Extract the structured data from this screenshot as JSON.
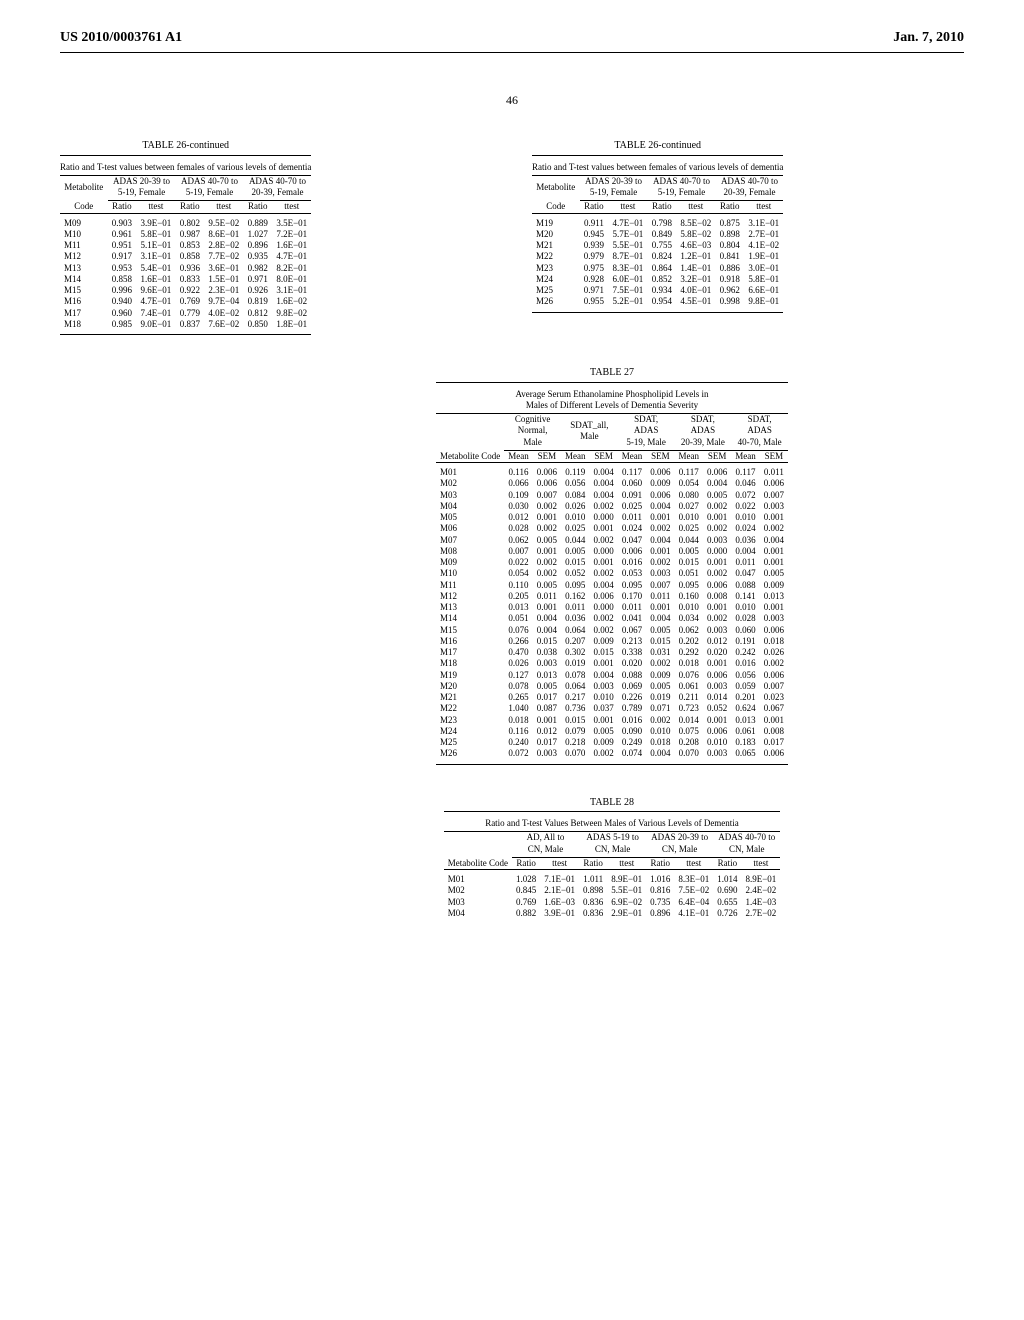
{
  "header": {
    "left": "US 2010/0003761 A1",
    "right": "Jan. 7, 2010"
  },
  "page_number": "46",
  "table26": {
    "caption": "TABLE 26-continued",
    "subtitle": "Ratio and T-test values between females of various levels of dementia",
    "metab_label": "Metabolite",
    "code_label": "Code",
    "group_labels": [
      "ADAS 20-39 to\n5-19, Female",
      "ADAS 40-70 to\n5-19, Female",
      "ADAS 40-70 to\n20-39, Female"
    ],
    "col_labels": [
      "Ratio",
      "ttest"
    ],
    "left_rows": [
      [
        "M09",
        "0.903",
        "3.9E−01",
        "0.802",
        "9.5E−02",
        "0.889",
        "3.5E−01"
      ],
      [
        "M10",
        "0.961",
        "5.8E−01",
        "0.987",
        "8.6E−01",
        "1.027",
        "7.2E−01"
      ],
      [
        "M11",
        "0.951",
        "5.1E−01",
        "0.853",
        "2.8E−02",
        "0.896",
        "1.6E−01"
      ],
      [
        "M12",
        "0.917",
        "3.1E−01",
        "0.858",
        "7.7E−02",
        "0.935",
        "4.7E−01"
      ],
      [
        "M13",
        "0.953",
        "5.4E−01",
        "0.936",
        "3.6E−01",
        "0.982",
        "8.2E−01"
      ],
      [
        "M14",
        "0.858",
        "1.6E−01",
        "0.833",
        "1.5E−01",
        "0.971",
        "8.0E−01"
      ],
      [
        "M15",
        "0.996",
        "9.6E−01",
        "0.922",
        "2.3E−01",
        "0.926",
        "3.1E−01"
      ],
      [
        "M16",
        "0.940",
        "4.7E−01",
        "0.769",
        "9.7E−04",
        "0.819",
        "1.6E−02"
      ],
      [
        "M17",
        "0.960",
        "7.4E−01",
        "0.779",
        "4.0E−02",
        "0.812",
        "9.8E−02"
      ],
      [
        "M18",
        "0.985",
        "9.0E−01",
        "0.837",
        "7.6E−02",
        "0.850",
        "1.8E−01"
      ]
    ],
    "right_rows": [
      [
        "M19",
        "0.911",
        "4.7E−01",
        "0.798",
        "8.5E−02",
        "0.875",
        "3.1E−01"
      ],
      [
        "M20",
        "0.945",
        "5.7E−01",
        "0.849",
        "5.8E−02",
        "0.898",
        "2.7E−01"
      ],
      [
        "M21",
        "0.939",
        "5.5E−01",
        "0.755",
        "4.6E−03",
        "0.804",
        "4.1E−02"
      ],
      [
        "M22",
        "0.979",
        "8.7E−01",
        "0.824",
        "1.2E−01",
        "0.841",
        "1.9E−01"
      ],
      [
        "M23",
        "0.975",
        "8.3E−01",
        "0.864",
        "1.4E−01",
        "0.886",
        "3.0E−01"
      ],
      [
        "M24",
        "0.928",
        "6.0E−01",
        "0.852",
        "3.2E−01",
        "0.918",
        "5.8E−01"
      ],
      [
        "M25",
        "0.971",
        "7.5E−01",
        "0.934",
        "4.0E−01",
        "0.962",
        "6.6E−01"
      ],
      [
        "M26",
        "0.955",
        "5.2E−01",
        "0.954",
        "4.5E−01",
        "0.998",
        "9.8E−01"
      ]
    ]
  },
  "table27": {
    "caption": "TABLE 27",
    "subtitle": "Average Serum Ethanolamine Phospholipid Levels in\nMales of Different Levels of Dementia Severity",
    "metab_label": "Metabolite Code",
    "group_labels": [
      "Cognitive\nNormal,\nMale",
      "SDAT_all,\nMale",
      "SDAT,\nADAS\n5-19, Male",
      "SDAT,\nADAS\n20-39, Male",
      "SDAT,\nADAS\n40-70, Male"
    ],
    "col_labels": [
      "Mean",
      "SEM"
    ],
    "rows": [
      [
        "M01",
        "0.116",
        "0.006",
        "0.119",
        "0.004",
        "0.117",
        "0.006",
        "0.117",
        "0.006",
        "0.117",
        "0.011"
      ],
      [
        "M02",
        "0.066",
        "0.006",
        "0.056",
        "0.004",
        "0.060",
        "0.009",
        "0.054",
        "0.004",
        "0.046",
        "0.006"
      ],
      [
        "M03",
        "0.109",
        "0.007",
        "0.084",
        "0.004",
        "0.091",
        "0.006",
        "0.080",
        "0.005",
        "0.072",
        "0.007"
      ],
      [
        "M04",
        "0.030",
        "0.002",
        "0.026",
        "0.002",
        "0.025",
        "0.004",
        "0.027",
        "0.002",
        "0.022",
        "0.003"
      ],
      [
        "M05",
        "0.012",
        "0.001",
        "0.010",
        "0.000",
        "0.011",
        "0.001",
        "0.010",
        "0.001",
        "0.010",
        "0.001"
      ],
      [
        "M06",
        "0.028",
        "0.002",
        "0.025",
        "0.001",
        "0.024",
        "0.002",
        "0.025",
        "0.002",
        "0.024",
        "0.002"
      ],
      [
        "M07",
        "0.062",
        "0.005",
        "0.044",
        "0.002",
        "0.047",
        "0.004",
        "0.044",
        "0.003",
        "0.036",
        "0.004"
      ],
      [
        "M08",
        "0.007",
        "0.001",
        "0.005",
        "0.000",
        "0.006",
        "0.001",
        "0.005",
        "0.000",
        "0.004",
        "0.001"
      ],
      [
        "M09",
        "0.022",
        "0.002",
        "0.015",
        "0.001",
        "0.016",
        "0.002",
        "0.015",
        "0.001",
        "0.011",
        "0.001"
      ],
      [
        "M10",
        "0.054",
        "0.002",
        "0.052",
        "0.002",
        "0.053",
        "0.003",
        "0.051",
        "0.002",
        "0.047",
        "0.005"
      ],
      [
        "M11",
        "0.110",
        "0.005",
        "0.095",
        "0.004",
        "0.095",
        "0.007",
        "0.095",
        "0.006",
        "0.088",
        "0.009"
      ],
      [
        "M12",
        "0.205",
        "0.011",
        "0.162",
        "0.006",
        "0.170",
        "0.011",
        "0.160",
        "0.008",
        "0.141",
        "0.013"
      ],
      [
        "M13",
        "0.013",
        "0.001",
        "0.011",
        "0.000",
        "0.011",
        "0.001",
        "0.010",
        "0.001",
        "0.010",
        "0.001"
      ],
      [
        "M14",
        "0.051",
        "0.004",
        "0.036",
        "0.002",
        "0.041",
        "0.004",
        "0.034",
        "0.002",
        "0.028",
        "0.003"
      ],
      [
        "M15",
        "0.076",
        "0.004",
        "0.064",
        "0.002",
        "0.067",
        "0.005",
        "0.062",
        "0.003",
        "0.060",
        "0.006"
      ],
      [
        "M16",
        "0.266",
        "0.015",
        "0.207",
        "0.009",
        "0.213",
        "0.015",
        "0.202",
        "0.012",
        "0.191",
        "0.018"
      ],
      [
        "M17",
        "0.470",
        "0.038",
        "0.302",
        "0.015",
        "0.338",
        "0.031",
        "0.292",
        "0.020",
        "0.242",
        "0.026"
      ],
      [
        "M18",
        "0.026",
        "0.003",
        "0.019",
        "0.001",
        "0.020",
        "0.002",
        "0.018",
        "0.001",
        "0.016",
        "0.002"
      ],
      [
        "M19",
        "0.127",
        "0.013",
        "0.078",
        "0.004",
        "0.088",
        "0.009",
        "0.076",
        "0.006",
        "0.056",
        "0.006"
      ],
      [
        "M20",
        "0.078",
        "0.005",
        "0.064",
        "0.003",
        "0.069",
        "0.005",
        "0.061",
        "0.003",
        "0.059",
        "0.007"
      ],
      [
        "M21",
        "0.265",
        "0.017",
        "0.217",
        "0.010",
        "0.226",
        "0.019",
        "0.211",
        "0.014",
        "0.201",
        "0.023"
      ],
      [
        "M22",
        "1.040",
        "0.087",
        "0.736",
        "0.037",
        "0.789",
        "0.071",
        "0.723",
        "0.052",
        "0.624",
        "0.067"
      ],
      [
        "M23",
        "0.018",
        "0.001",
        "0.015",
        "0.001",
        "0.016",
        "0.002",
        "0.014",
        "0.001",
        "0.013",
        "0.001"
      ],
      [
        "M24",
        "0.116",
        "0.012",
        "0.079",
        "0.005",
        "0.090",
        "0.010",
        "0.075",
        "0.006",
        "0.061",
        "0.008"
      ],
      [
        "M25",
        "0.240",
        "0.017",
        "0.218",
        "0.009",
        "0.249",
        "0.018",
        "0.208",
        "0.010",
        "0.183",
        "0.017"
      ],
      [
        "M26",
        "0.072",
        "0.003",
        "0.070",
        "0.002",
        "0.074",
        "0.004",
        "0.070",
        "0.003",
        "0.065",
        "0.006"
      ]
    ]
  },
  "table28": {
    "caption": "TABLE 28",
    "subtitle": "Ratio and T-test Values Between Males of Various Levels of Dementia",
    "metab_label": "Metabolite Code",
    "group_labels": [
      "AD, All to\nCN, Male",
      "ADAS 5-19 to\nCN, Male",
      "ADAS 20-39 to\nCN, Male",
      "ADAS 40-70 to\nCN, Male"
    ],
    "col_labels": [
      "Ratio",
      "ttest"
    ],
    "rows": [
      [
        "M01",
        "1.028",
        "7.1E−01",
        "1.011",
        "8.9E−01",
        "1.016",
        "8.3E−01",
        "1.014",
        "8.9E−01"
      ],
      [
        "M02",
        "0.845",
        "2.1E−01",
        "0.898",
        "5.5E−01",
        "0.816",
        "7.5E−02",
        "0.690",
        "2.4E−02"
      ],
      [
        "M03",
        "0.769",
        "1.6E−03",
        "0.836",
        "6.9E−02",
        "0.735",
        "6.4E−04",
        "0.655",
        "1.4E−03"
      ],
      [
        "M04",
        "0.882",
        "3.9E−01",
        "0.836",
        "2.9E−01",
        "0.896",
        "4.1E−01",
        "0.726",
        "2.7E−02"
      ]
    ]
  }
}
